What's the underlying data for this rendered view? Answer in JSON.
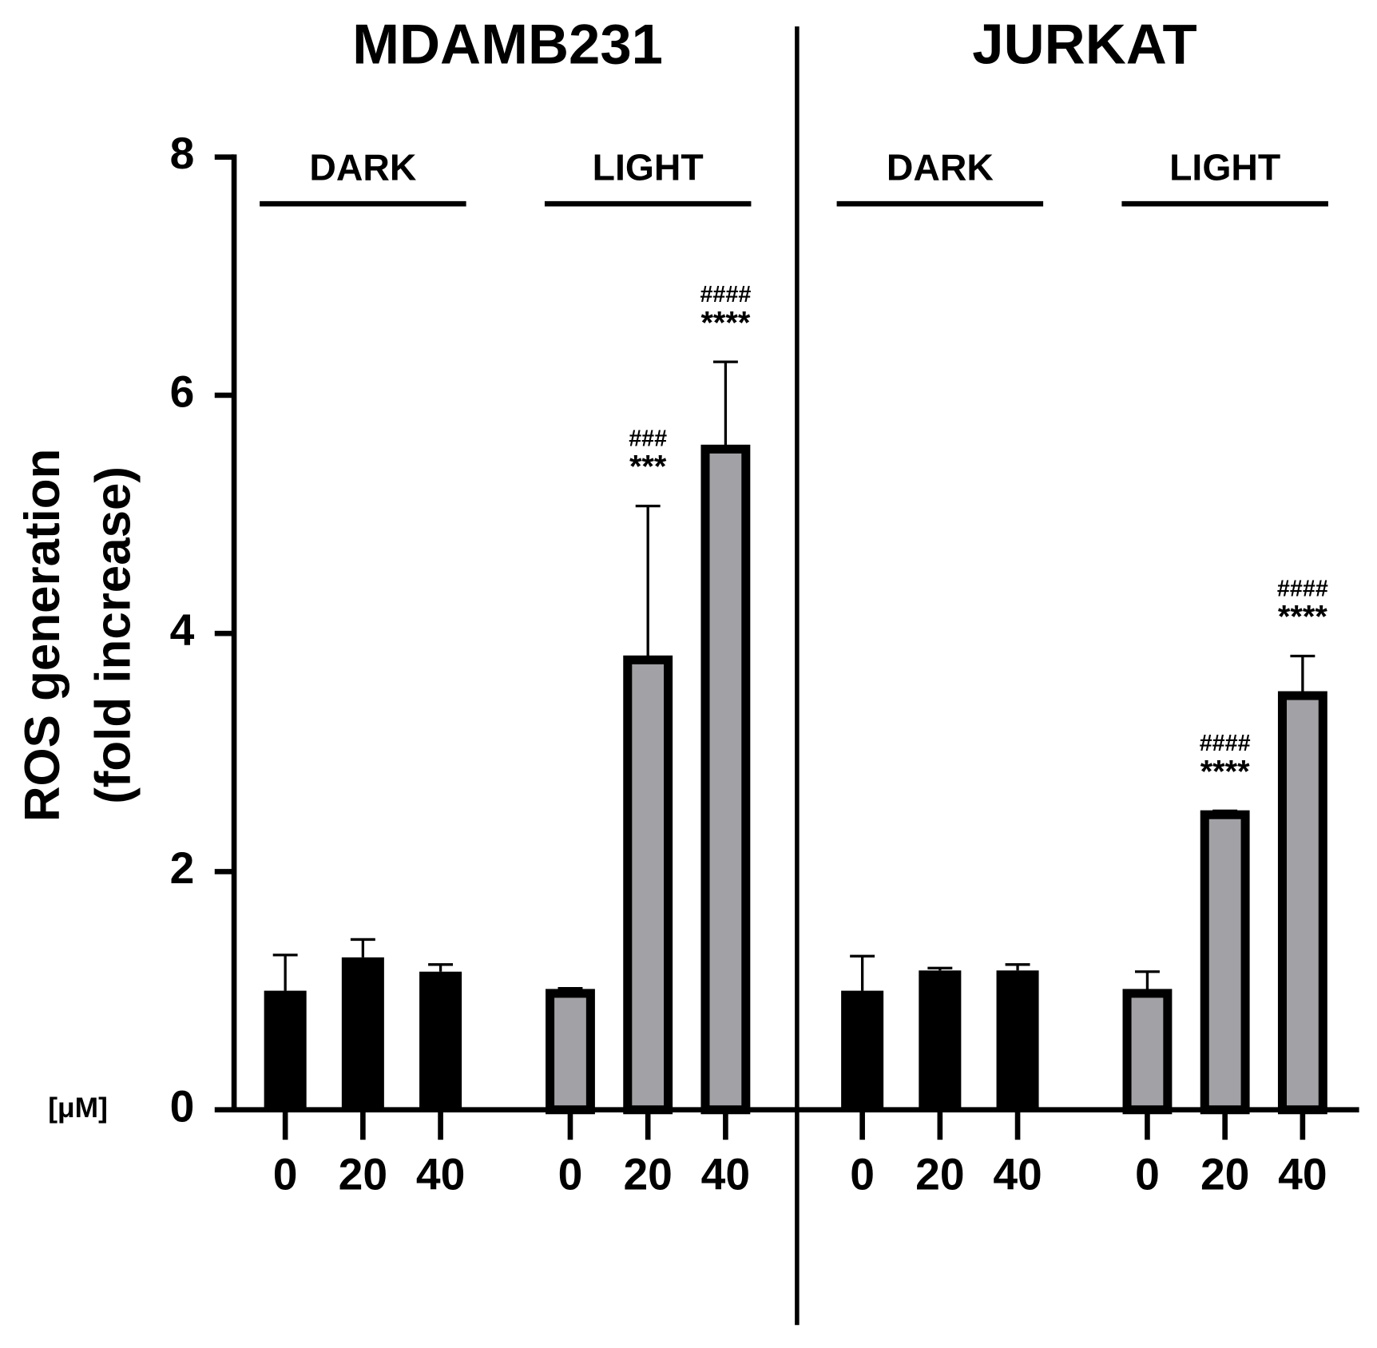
{
  "chart_data": {
    "type": "bar",
    "y_label": [
      "ROS generation",
      "(fold increase)"
    ],
    "x_unit_label": "[μM]",
    "ylim": [
      0,
      8
    ],
    "yticks": [
      0,
      2,
      4,
      6,
      8
    ],
    "panels": [
      {
        "title": "MDAMB231",
        "groups": [
          {
            "label": "DARK",
            "color": "#000000",
            "categories": [
              "0",
              "20",
              "40"
            ],
            "values": [
              1.0,
              1.28,
              1.16
            ],
            "errors": [
              0.3,
              0.15,
              0.06
            ]
          },
          {
            "label": "LIGHT",
            "color": "#a2a2a6",
            "categories": [
              "0",
              "20",
              "40"
            ],
            "values": [
              1.0,
              3.8,
              5.57
            ],
            "errors": [
              0.02,
              1.27,
              0.71
            ],
            "hash_labels": [
              null,
              "###",
              "####"
            ],
            "star_labels": [
              null,
              "***",
              "****"
            ]
          }
        ]
      },
      {
        "title": "JURKAT",
        "groups": [
          {
            "label": "DARK",
            "color": "#000000",
            "categories": [
              "0",
              "20",
              "40"
            ],
            "values": [
              1.0,
              1.17,
              1.17
            ],
            "errors": [
              0.29,
              0.02,
              0.05
            ]
          },
          {
            "label": "LIGHT",
            "color": "#a2a2a6",
            "categories": [
              "0",
              "20",
              "40"
            ],
            "values": [
              1.0,
              2.5,
              3.5
            ],
            "errors": [
              0.16,
              0.01,
              0.31
            ],
            "hash_labels": [
              null,
              "####",
              "####"
            ],
            "star_labels": [
              null,
              "****",
              "****"
            ]
          }
        ]
      }
    ]
  }
}
